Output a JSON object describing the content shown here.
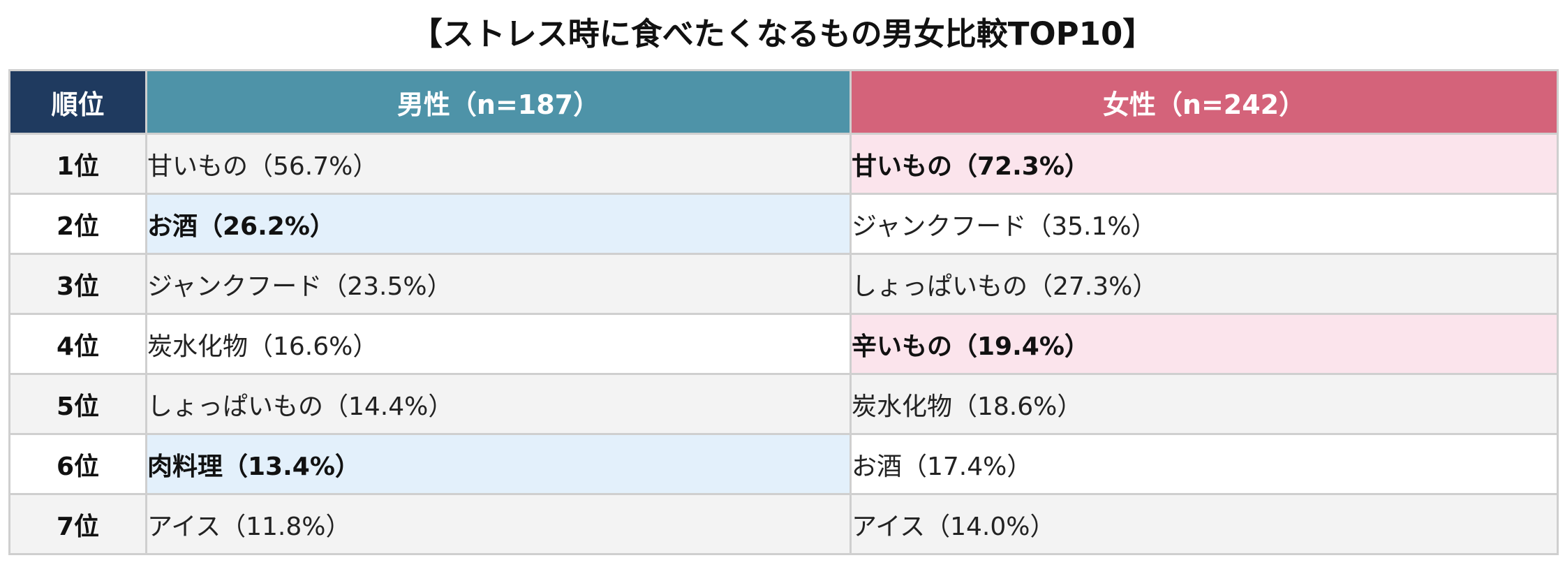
{
  "title": "【ストレス時に食べたくなるもの男女比較TOP10】",
  "headers": {
    "rank": "順位",
    "male": "男性（n=187）",
    "female": "女性（n=242）"
  },
  "rows": [
    {
      "rank": "1位",
      "male": "甘いもの（56.7%）",
      "female": "甘いもの（72.3%）",
      "male_highlight": false,
      "female_highlight": true
    },
    {
      "rank": "2位",
      "male": "お酒（26.2%）",
      "female": "ジャンクフード（35.1%）",
      "male_highlight": true,
      "female_highlight": false
    },
    {
      "rank": "3位",
      "male": "ジャンクフード（23.5%）",
      "female": "しょっぱいもの（27.3%）",
      "male_highlight": false,
      "female_highlight": false
    },
    {
      "rank": "4位",
      "male": "炭水化物（16.6%）",
      "female": "辛いもの（19.4%）",
      "male_highlight": false,
      "female_highlight": true
    },
    {
      "rank": "5位",
      "male": "しょっぱいもの（14.4%）",
      "female": "炭水化物（18.6%）",
      "male_highlight": false,
      "female_highlight": false
    },
    {
      "rank": "6位",
      "male": "肉料理（13.4%）",
      "female": "お酒（17.4%）",
      "male_highlight": true,
      "female_highlight": false
    },
    {
      "rank": "7位",
      "male": "アイス（11.8%）",
      "female": "アイス（14.0%）",
      "male_highlight": false,
      "female_highlight": false
    }
  ],
  "colors": {
    "rank_header": "#1f3a5f",
    "male_header": "#4e93a8",
    "female_header": "#d4637a",
    "male_highlight": "#e3f0fb",
    "female_highlight": "#fbe4ec"
  }
}
